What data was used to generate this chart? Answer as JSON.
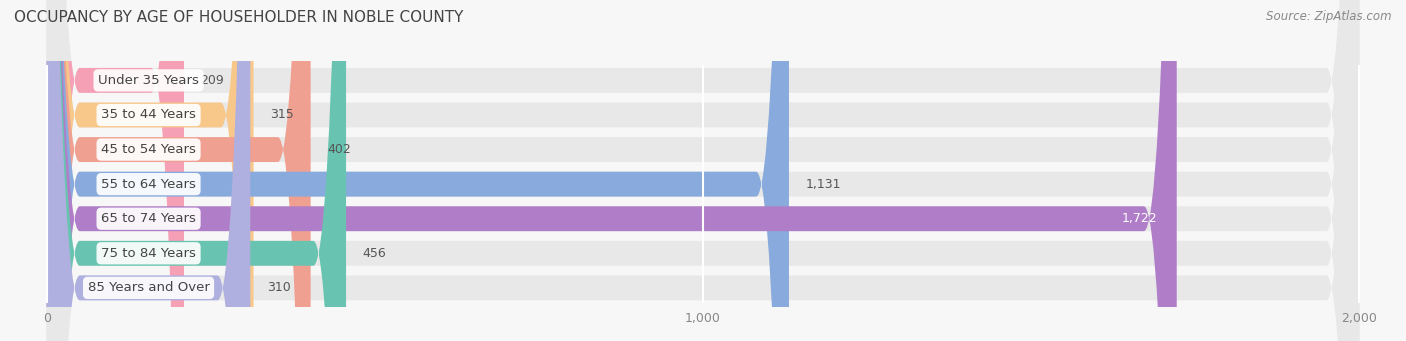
{
  "title": "OCCUPANCY BY AGE OF HOUSEHOLDER IN NOBLE COUNTY",
  "source": "Source: ZipAtlas.com",
  "categories": [
    "Under 35 Years",
    "35 to 44 Years",
    "45 to 54 Years",
    "55 to 64 Years",
    "65 to 74 Years",
    "75 to 84 Years",
    "85 Years and Over"
  ],
  "values": [
    209,
    315,
    402,
    1131,
    1722,
    456,
    310
  ],
  "bar_colors": [
    "#f5a0b5",
    "#f8c88a",
    "#f0a090",
    "#88aadc",
    "#b07ec8",
    "#68c4b0",
    "#b0b0e0"
  ],
  "background_color": "#f7f7f7",
  "bar_bg_color": "#e8e8e8",
  "xlim": [
    0,
    2000
  ],
  "xticks": [
    0,
    1000,
    2000
  ],
  "title_fontsize": 11,
  "label_fontsize": 9.5,
  "value_fontsize": 9,
  "bar_height": 0.72,
  "figsize": [
    14.06,
    3.41
  ],
  "dpi": 100
}
